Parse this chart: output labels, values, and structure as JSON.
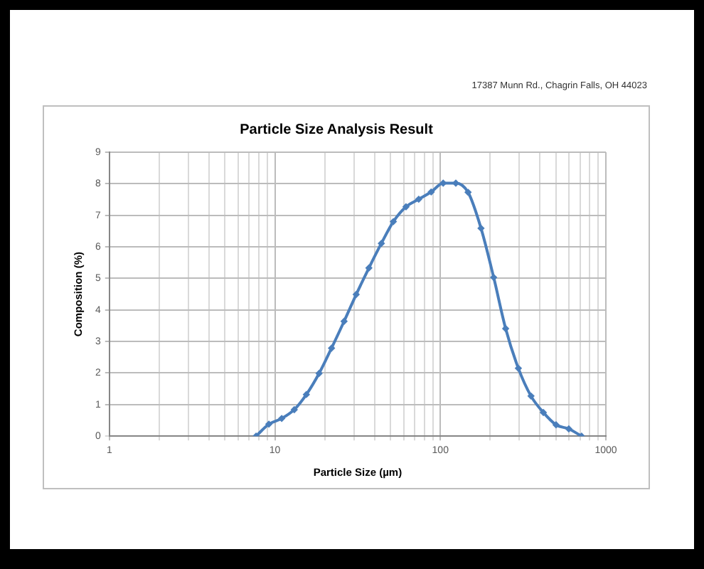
{
  "chart_data": {
    "type": "line",
    "title": "Particle Size Analysis Result",
    "xlabel": "Particle Size (µm)",
    "ylabel": "Composition (%)",
    "annotations": [
      "17387 Munn Rd., Chagrin Falls, OH 44023"
    ],
    "log": "x",
    "x": [
      7.7,
      9.2,
      11,
      13.1,
      15.5,
      18.5,
      22,
      26.2,
      31,
      37,
      44,
      52,
      62,
      74,
      88,
      104,
      124,
      147,
      176,
      210,
      248,
      296,
      353,
      419,
      500,
      597,
      713
    ],
    "series": [
      {
        "color": "#4a7ebb",
        "values": [
          0,
          0.38,
          0.56,
          0.84,
          1.32,
          1.99,
          2.79,
          3.64,
          4.49,
          5.33,
          6.11,
          6.8,
          7.27,
          7.51,
          7.74,
          8.02,
          8.02,
          7.73,
          6.59,
          5.03,
          3.41,
          2.15,
          1.27,
          0.75,
          0.36,
          0.23,
          0
        ]
      }
    ],
    "xlim": [
      1,
      1000
    ],
    "xticks": [
      1,
      {
        "value": 2,
        "label": null
      },
      {
        "value": 3,
        "label": null
      },
      {
        "value": 4,
        "label": null
      },
      {
        "value": 5,
        "label": null
      },
      {
        "value": 6,
        "label": null
      },
      {
        "value": 7,
        "label": null
      },
      {
        "value": 8,
        "label": null
      },
      {
        "value": 9,
        "label": null
      },
      10,
      {
        "value": 20,
        "label": null
      },
      {
        "value": 30,
        "label": null
      },
      {
        "value": 40,
        "label": null
      },
      {
        "value": 50,
        "label": null
      },
      {
        "value": 60,
        "label": null
      },
      {
        "value": 70,
        "label": null
      },
      {
        "value": 80,
        "label": null
      },
      {
        "value": 90,
        "label": null
      },
      100,
      {
        "value": 200,
        "label": null
      },
      {
        "value": 300,
        "label": null
      },
      {
        "value": 400,
        "label": null
      },
      {
        "value": 500,
        "label": null
      },
      {
        "value": 600,
        "label": null
      },
      {
        "value": 700,
        "label": null
      },
      {
        "value": 800,
        "label": null
      },
      {
        "value": 900,
        "label": null
      },
      1000
    ],
    "ylim": [
      0,
      9
    ],
    "yticks": [
      0,
      1,
      2,
      3,
      4,
      5,
      6,
      7,
      8,
      9
    ],
    "grid": true,
    "marker": "diamond"
  }
}
